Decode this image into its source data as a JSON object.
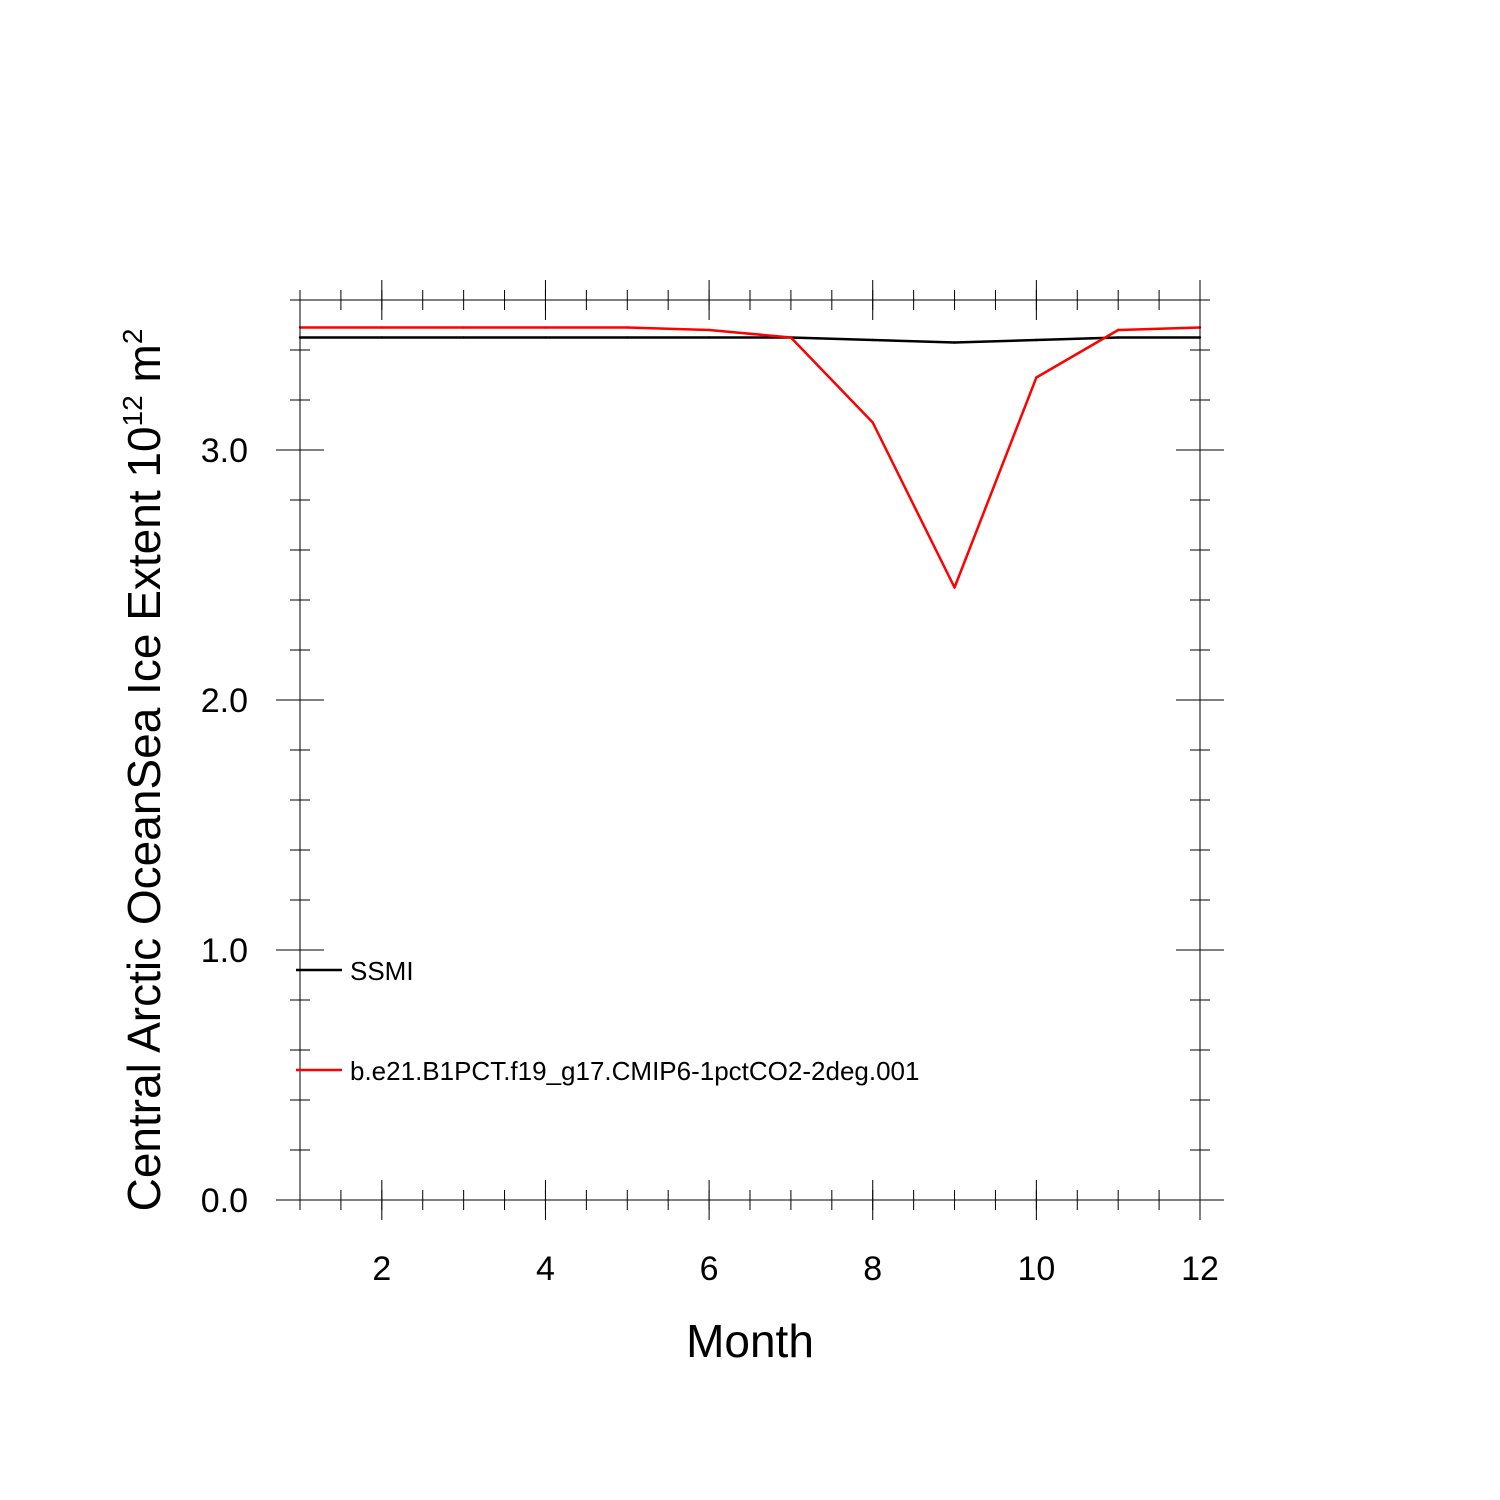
{
  "chart_data": {
    "type": "line",
    "title": "",
    "xlabel": "Month",
    "ylabel": {
      "text": "Central Arctic OceanSea Ice Extent 10",
      "exp": "12",
      "unit": " m",
      "unit_exp": "2"
    },
    "xlim": [
      1,
      12
    ],
    "ylim": [
      0,
      3.6
    ],
    "x_ticks": [
      2,
      4,
      6,
      8,
      10,
      12
    ],
    "x_tick_labels": [
      "2",
      "4",
      "6",
      "8",
      "10",
      "12"
    ],
    "x_minor_step": 0.5,
    "y_ticks": [
      0,
      1,
      2,
      3
    ],
    "y_tick_labels": [
      "0.0",
      "1.0",
      "2.0",
      "3.0"
    ],
    "y_minor_step": 0.2,
    "grid": false,
    "legend_position": "lower-left",
    "x": [
      1,
      2,
      3,
      4,
      5,
      6,
      7,
      8,
      9,
      10,
      11,
      12
    ],
    "series": [
      {
        "name": "SSMI",
        "color": "#000000",
        "values": [
          3.45,
          3.45,
          3.45,
          3.45,
          3.45,
          3.45,
          3.45,
          3.44,
          3.43,
          3.44,
          3.45,
          3.45
        ]
      },
      {
        "name": "b.e21.B1PCT.f19_g17.CMIP6-1pctCO2-2deg.001",
        "color": "#ff0000",
        "values": [
          3.49,
          3.49,
          3.49,
          3.49,
          3.49,
          3.48,
          3.45,
          3.11,
          2.45,
          3.29,
          3.48,
          3.49
        ]
      }
    ]
  }
}
